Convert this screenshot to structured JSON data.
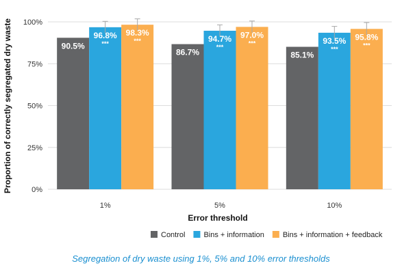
{
  "chart_data": {
    "type": "bar",
    "categories": [
      "1%",
      "5%",
      "10%"
    ],
    "series": [
      {
        "name": "Control",
        "color": "#636466",
        "values": [
          90.5,
          86.7,
          85.1
        ],
        "labels": [
          "90.5%",
          "86.7%",
          "85.1%"
        ],
        "significance": [
          "",
          "",
          ""
        ],
        "error": [
          0,
          0,
          0
        ]
      },
      {
        "name": "Bins + information",
        "color": "#2aa6de",
        "values": [
          96.8,
          94.7,
          93.5
        ],
        "labels": [
          "96.8%",
          "94.7%",
          "93.5%"
        ],
        "significance": [
          "***",
          "***",
          "***"
        ],
        "error": [
          3.5,
          3.5,
          3.8
        ]
      },
      {
        "name": "Bins + information + feedback",
        "color": "#fbae4f",
        "values": [
          98.3,
          97.0,
          95.8
        ],
        "labels": [
          "98.3%",
          "97.0%",
          "95.8%"
        ],
        "significance": [
          "***",
          "***",
          "***"
        ],
        "error": [
          3.5,
          3.5,
          3.8
        ]
      }
    ],
    "xlabel": "Error threshold",
    "ylabel": "Proportion of correctly segregated dry waste",
    "ylim": [
      0,
      100
    ],
    "yticks": [
      0,
      25,
      50,
      75,
      100
    ],
    "ytick_labels": [
      "0%",
      "25%",
      "50%",
      "75%",
      "100%"
    ],
    "grid": true,
    "legend_position": "bottom-right"
  },
  "caption": "Segregation of dry waste using 1%, 5% and 10% error thresholds"
}
